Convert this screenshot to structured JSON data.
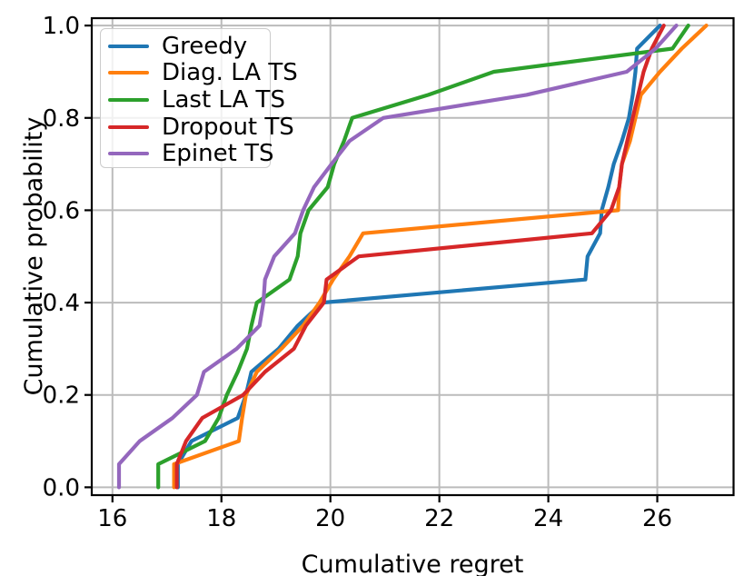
{
  "figure": {
    "xlabel": "Cumulative regret",
    "ylabel": "Cumulative probability"
  },
  "chart_data": {
    "type": "line",
    "subtype": "ecdf",
    "title": "",
    "xlabel": "Cumulative regret",
    "ylabel": "Cumulative probability",
    "xlim": [
      15.62,
      27.4
    ],
    "ylim": [
      -0.017,
      1.016
    ],
    "x_ticks": [
      16,
      18,
      20,
      22,
      24,
      26
    ],
    "y_ticks": [
      0.0,
      0.2,
      0.4,
      0.6,
      0.8,
      1.0
    ],
    "grid": true,
    "grid_color": "#bbbbbb",
    "legend_position": "upper-left",
    "cumulative_probability": [
      0.0,
      0.05,
      0.1,
      0.15,
      0.2,
      0.25,
      0.3,
      0.35,
      0.4,
      0.45,
      0.5,
      0.55,
      0.6,
      0.65,
      0.7,
      0.75,
      0.8,
      0.85,
      0.9,
      0.95,
      1.0
    ],
    "series": [
      {
        "name": "Greedy",
        "color": "#1f77b4",
        "cumulative_regret": [
          17.2,
          17.2,
          17.45,
          18.3,
          18.45,
          18.55,
          19.05,
          19.4,
          19.85,
          24.68,
          24.72,
          24.95,
          24.98,
          25.1,
          25.2,
          25.35,
          25.48,
          25.55,
          25.6,
          25.63,
          26.05
        ]
      },
      {
        "name": "Diag. LA TS",
        "color": "#ff7f0e",
        "cumulative_regret": [
          17.13,
          17.13,
          18.32,
          18.38,
          18.45,
          18.65,
          19.1,
          19.5,
          19.8,
          20.05,
          20.35,
          20.6,
          25.28,
          25.3,
          25.35,
          25.5,
          25.6,
          25.7,
          26.05,
          26.45,
          26.9
        ]
      },
      {
        "name": "Last LA TS",
        "color": "#2ca02c",
        "cumulative_regret": [
          16.84,
          16.84,
          17.7,
          17.95,
          18.1,
          18.3,
          18.47,
          18.55,
          18.65,
          19.25,
          19.4,
          19.45,
          19.6,
          19.95,
          20.07,
          20.25,
          20.4,
          21.8,
          23.0,
          26.28,
          26.57
        ]
      },
      {
        "name": "Dropout TS",
        "color": "#d62728",
        "cumulative_regret": [
          17.18,
          17.18,
          17.35,
          17.65,
          18.4,
          18.8,
          19.33,
          19.55,
          19.88,
          19.93,
          20.52,
          24.8,
          25.15,
          25.3,
          25.35,
          25.45,
          25.55,
          25.65,
          25.75,
          25.9,
          26.12
        ]
      },
      {
        "name": "Epinet TS",
        "color": "#9467bd",
        "cumulative_regret": [
          16.12,
          16.12,
          16.5,
          17.1,
          17.55,
          17.68,
          18.28,
          18.7,
          18.77,
          18.8,
          18.97,
          19.35,
          19.5,
          19.7,
          20.02,
          20.35,
          20.97,
          23.6,
          25.44,
          25.97,
          26.35
        ]
      }
    ]
  }
}
